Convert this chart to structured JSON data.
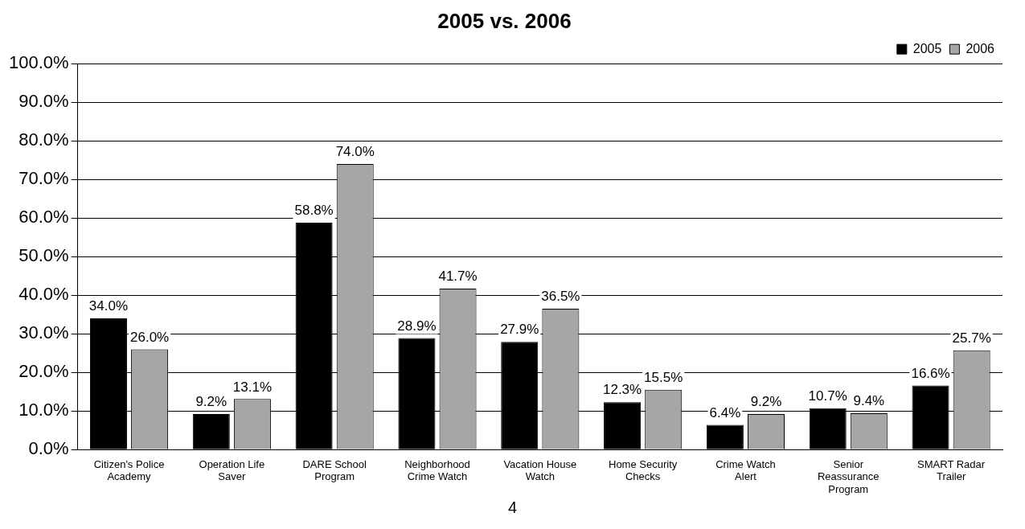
{
  "chart_data": {
    "type": "bar",
    "title": "2005 vs. 2006",
    "categories": [
      "Citizen's Police Academy",
      "Operation Life Saver",
      "DARE School Program",
      "Neighborhood Crime Watch",
      "Vacation House Watch",
      "Home Security Checks",
      "Crime Watch Alert",
      "Senior Reassurance Program",
      "SMART Radar Trailer"
    ],
    "series": [
      {
        "name": "2005",
        "color": "#000000",
        "values": [
          34.0,
          9.2,
          58.8,
          28.9,
          27.9,
          12.3,
          6.4,
          10.7,
          16.6
        ],
        "value_labels": [
          "34.0%",
          "9.2%",
          "58.8%",
          "28.9%",
          "27.9%",
          "12.3%",
          "6.4%",
          "10.7%",
          "16.6%"
        ]
      },
      {
        "name": "2006",
        "color": "#a6a6a6",
        "values": [
          26.0,
          13.1,
          74.0,
          41.7,
          36.5,
          15.5,
          9.2,
          9.4,
          25.7
        ],
        "value_labels": [
          "26.0%",
          "13.1%",
          "74.0%",
          "41.7%",
          "36.5%",
          "15.5%",
          "9.2%",
          "9.4%",
          "25.7%"
        ]
      }
    ],
    "ylim": [
      0,
      100
    ],
    "yticks": [
      {
        "value": 0,
        "label": "0.0%"
      },
      {
        "value": 10,
        "label": "10.0%"
      },
      {
        "value": 20,
        "label": "20.0%"
      },
      {
        "value": 30,
        "label": "30.0%"
      },
      {
        "value": 40,
        "label": "40.0%"
      },
      {
        "value": 50,
        "label": "50.0%"
      },
      {
        "value": 60,
        "label": "60.0%"
      },
      {
        "value": 70,
        "label": "70.0%"
      },
      {
        "value": 80,
        "label": "80.0%"
      },
      {
        "value": 90,
        "label": "90.0%"
      },
      {
        "value": 100,
        "label": "100.0%"
      }
    ],
    "grid": "y",
    "legend": "top right",
    "annotations": [
      "4"
    ]
  }
}
